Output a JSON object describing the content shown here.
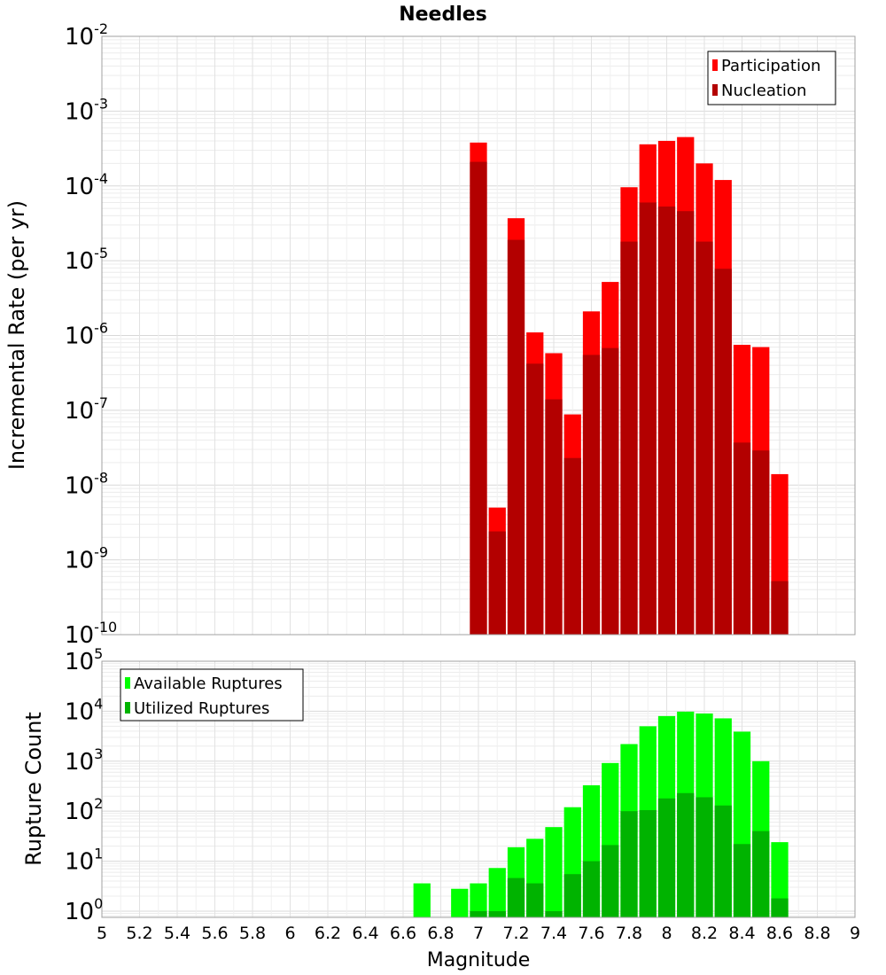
{
  "chart_data": [
    {
      "type": "bar",
      "title": "Needles",
      "ylabel": "Incremental Rate (per yr)",
      "xlabel": "",
      "yscale": "log",
      "ylim": [
        1e-10,
        0.01
      ],
      "xlim": [
        5,
        9
      ],
      "bar_width": 0.1,
      "legend_position": "top-right",
      "y_tick_base": "10",
      "y_tick_exponents": [
        "-2",
        "-3",
        "-4",
        "-5",
        "-6",
        "-7",
        "-8",
        "-9",
        "-10"
      ],
      "grid": true,
      "x": [
        7.0,
        7.1,
        7.2,
        7.3,
        7.4,
        7.5,
        7.6,
        7.7,
        7.8,
        7.9,
        8.0,
        8.1,
        8.2,
        8.3,
        8.4,
        8.5,
        8.6
      ],
      "series": [
        {
          "name": "Participation",
          "color": "#ff0000",
          "values": [
            0.00038,
            5e-09,
            3.7e-05,
            1.1e-06,
            5.8e-07,
            8.8e-08,
            2.1e-06,
            5.2e-06,
            9.6e-05,
            0.00036,
            0.0004,
            0.00045,
            0.0002,
            0.00012,
            7.5e-07,
            7e-07,
            1.4e-08
          ]
        },
        {
          "name": "Nucleation",
          "color": "#b30000",
          "values": [
            0.00021,
            2.4e-09,
            1.9e-05,
            4.2e-07,
            1.4e-07,
            2.3e-08,
            5.5e-07,
            6.8e-07,
            1.8e-05,
            6e-05,
            5.3e-05,
            4.6e-05,
            1.8e-05,
            7.8e-06,
            3.7e-08,
            2.9e-08,
            5.2e-10
          ]
        }
      ]
    },
    {
      "type": "bar",
      "title": "",
      "ylabel": "Rupture Count",
      "xlabel": "Magnitude",
      "yscale": "log",
      "ylim": [
        0.75,
        100000.0
      ],
      "xlim": [
        5,
        9
      ],
      "bar_width": 0.1,
      "legend_position": "top-left",
      "y_tick_base": "10",
      "y_tick_exponents": [
        "5",
        "4",
        "3",
        "2",
        "1",
        "0"
      ],
      "x_tick_labels": [
        "5",
        "5.2",
        "5.4",
        "5.6",
        "5.8",
        "6",
        "6.2",
        "6.4",
        "6.6",
        "6.8",
        "7",
        "7.2",
        "7.4",
        "7.6",
        "7.8",
        "8",
        "8.2",
        "8.4",
        "8.6",
        "8.8",
        "9"
      ],
      "grid": true,
      "x": [
        6.7,
        6.8,
        6.9,
        7.0,
        7.1,
        7.2,
        7.3,
        7.4,
        7.5,
        7.6,
        7.7,
        7.8,
        7.9,
        8.0,
        8.1,
        8.2,
        8.3,
        8.4,
        8.5,
        8.6
      ],
      "series": [
        {
          "name": "Available Ruptures",
          "color": "#00ff00",
          "values": [
            3.6,
            0,
            2.8,
            3.6,
            7.3,
            19,
            28,
            48,
            120,
            330,
            920,
            2200,
            5000,
            8000,
            9800,
            9000,
            7200,
            3900,
            1000,
            24
          ]
        },
        {
          "name": "Utilized Ruptures",
          "color": "#00b300",
          "values": [
            0,
            0,
            0,
            1,
            1,
            4.6,
            3.6,
            1,
            5.5,
            10,
            21,
            100,
            105,
            180,
            230,
            190,
            130,
            22,
            40,
            1.8
          ]
        }
      ]
    }
  ]
}
